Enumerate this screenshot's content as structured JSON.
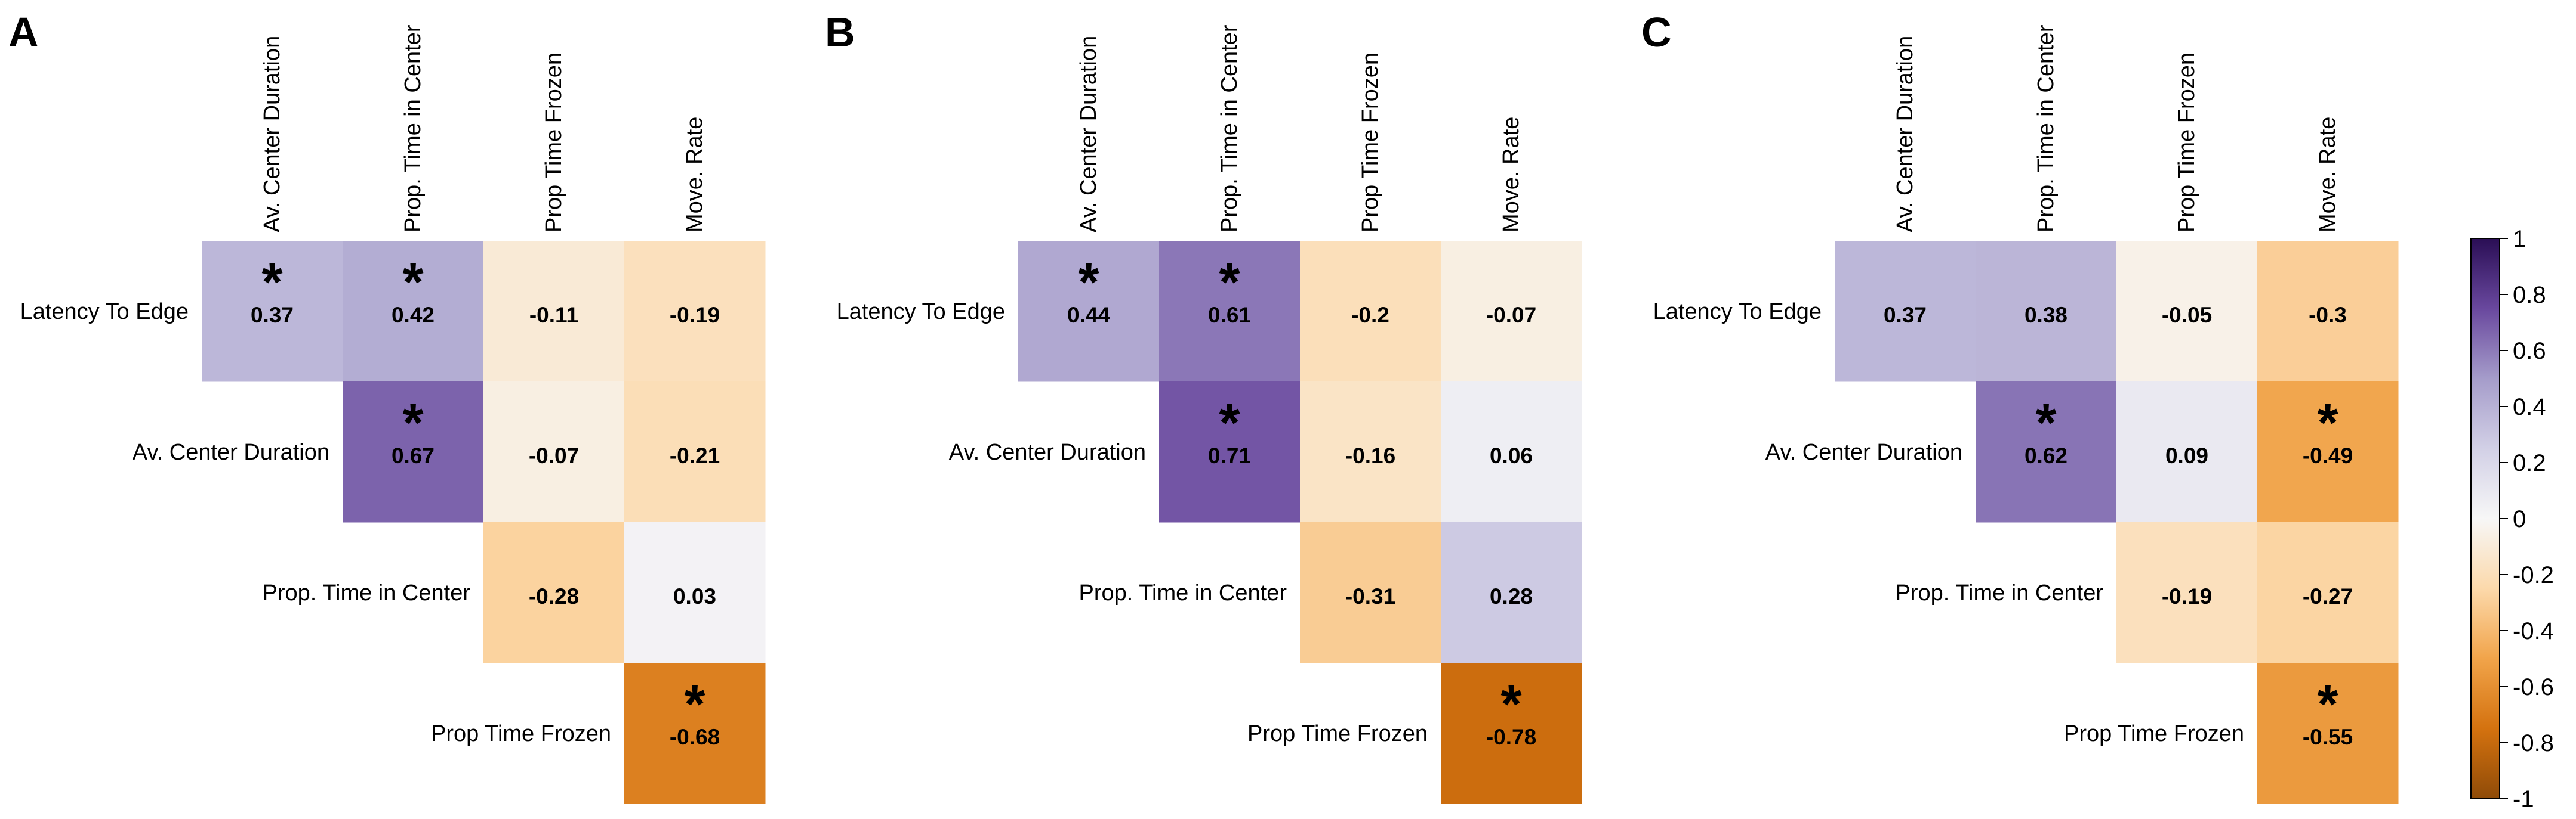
{
  "chart_data": {
    "type": "heatmap",
    "columns": [
      "Av. Center Duration",
      "Prop. Time in Center",
      "Prop Time Frozen",
      "Move. Rate"
    ],
    "rows": [
      "Latency To Edge",
      "Av. Center Duration",
      "Prop. Time in Center",
      "Prop Time Frozen"
    ],
    "significance_marker": "*",
    "panels": [
      {
        "label": "A",
        "cells": [
          {
            "row": 0,
            "col": 0,
            "value": 0.37,
            "text": "0.37",
            "sig": true
          },
          {
            "row": 0,
            "col": 1,
            "value": 0.42,
            "text": "0.42",
            "sig": true
          },
          {
            "row": 0,
            "col": 2,
            "value": -0.11,
            "text": "-0.11",
            "sig": false
          },
          {
            "row": 0,
            "col": 3,
            "value": -0.19,
            "text": "-0.19",
            "sig": false
          },
          {
            "row": 1,
            "col": 1,
            "value": 0.67,
            "text": "0.67",
            "sig": true
          },
          {
            "row": 1,
            "col": 2,
            "value": -0.07,
            "text": "-0.07",
            "sig": false
          },
          {
            "row": 1,
            "col": 3,
            "value": -0.21,
            "text": "-0.21",
            "sig": false
          },
          {
            "row": 2,
            "col": 2,
            "value": -0.28,
            "text": "-0.28",
            "sig": false
          },
          {
            "row": 2,
            "col": 3,
            "value": 0.03,
            "text": "0.03",
            "sig": false
          },
          {
            "row": 3,
            "col": 3,
            "value": -0.68,
            "text": "-0.68",
            "sig": true
          }
        ]
      },
      {
        "label": "B",
        "cells": [
          {
            "row": 0,
            "col": 0,
            "value": 0.44,
            "text": "0.44",
            "sig": true
          },
          {
            "row": 0,
            "col": 1,
            "value": 0.61,
            "text": "0.61",
            "sig": true
          },
          {
            "row": 0,
            "col": 2,
            "value": -0.2,
            "text": "-0.2",
            "sig": false
          },
          {
            "row": 0,
            "col": 3,
            "value": -0.07,
            "text": "-0.07",
            "sig": false
          },
          {
            "row": 1,
            "col": 1,
            "value": 0.71,
            "text": "0.71",
            "sig": true
          },
          {
            "row": 1,
            "col": 2,
            "value": -0.16,
            "text": "-0.16",
            "sig": false
          },
          {
            "row": 1,
            "col": 3,
            "value": 0.06,
            "text": "0.06",
            "sig": false
          },
          {
            "row": 2,
            "col": 2,
            "value": -0.31,
            "text": "-0.31",
            "sig": false
          },
          {
            "row": 2,
            "col": 3,
            "value": 0.28,
            "text": "0.28",
            "sig": false
          },
          {
            "row": 3,
            "col": 3,
            "value": -0.78,
            "text": "-0.78",
            "sig": true
          }
        ]
      },
      {
        "label": "C",
        "cells": [
          {
            "row": 0,
            "col": 0,
            "value": 0.37,
            "text": "0.37",
            "sig": false
          },
          {
            "row": 0,
            "col": 1,
            "value": 0.38,
            "text": "0.38",
            "sig": false
          },
          {
            "row": 0,
            "col": 2,
            "value": -0.05,
            "text": "-0.05",
            "sig": false
          },
          {
            "row": 0,
            "col": 3,
            "value": -0.3,
            "text": "-0.3",
            "sig": false
          },
          {
            "row": 1,
            "col": 1,
            "value": 0.62,
            "text": "0.62",
            "sig": true
          },
          {
            "row": 1,
            "col": 2,
            "value": 0.09,
            "text": "0.09",
            "sig": false
          },
          {
            "row": 1,
            "col": 3,
            "value": -0.49,
            "text": "-0.49",
            "sig": true
          },
          {
            "row": 2,
            "col": 2,
            "value": -0.19,
            "text": "-0.19",
            "sig": false
          },
          {
            "row": 2,
            "col": 3,
            "value": -0.27,
            "text": "-0.27",
            "sig": false
          },
          {
            "row": 3,
            "col": 3,
            "value": -0.55,
            "text": "-0.55",
            "sig": true
          }
        ]
      }
    ],
    "colorbar": {
      "range": [
        -1,
        1
      ],
      "ticks": [
        "1",
        "0.8",
        "0.6",
        "0.4",
        "0.2",
        "0",
        "-0.2",
        "-0.4",
        "-0.6",
        "-0.8",
        "-1"
      ],
      "colors": {
        "neg_extreme": "#8f4b08",
        "neg_strong": "#d4720f",
        "neg_mid": "#f1a44a",
        "neg_light": "#fcd9ab",
        "zero": "#f7f7f7",
        "pos_light": "#d2d0e6",
        "pos_mid": "#a59cca",
        "pos_strong": "#69489e",
        "pos_extreme": "#2a0e55"
      }
    }
  }
}
